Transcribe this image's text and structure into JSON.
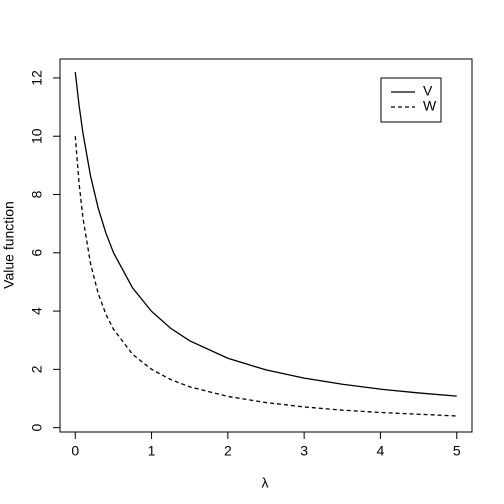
{
  "chart_data": {
    "type": "line",
    "x_label": "λ",
    "y_label": "Value function",
    "x": [
      0,
      0.05,
      0.1,
      0.2,
      0.3,
      0.4,
      0.5,
      0.75,
      1,
      1.25,
      1.5,
      2,
      2.5,
      3,
      3.5,
      4,
      4.5,
      5
    ],
    "series": [
      {
        "name": "V",
        "color": "#000000",
        "dash": "none",
        "values": [
          12.2,
          11.06,
          10.12,
          8.64,
          7.54,
          6.69,
          6.01,
          4.8,
          3.99,
          3.41,
          2.98,
          2.38,
          1.98,
          1.7,
          1.49,
          1.32,
          1.19,
          1.08
        ]
      },
      {
        "name": "W",
        "color": "#000000",
        "dash": "4,3",
        "values": [
          10.0,
          8.38,
          7.21,
          5.63,
          4.61,
          3.9,
          3.38,
          2.52,
          2.0,
          1.65,
          1.4,
          1.07,
          0.86,
          0.71,
          0.6,
          0.52,
          0.46,
          0.4
        ]
      }
    ],
    "xlim": [
      -0.2,
      5.2
    ],
    "xticks": [
      0,
      1,
      2,
      3,
      4,
      5
    ],
    "ylim": [
      -0.15,
      12.65
    ],
    "yticks": [
      0,
      2,
      4,
      6,
      8,
      10,
      12
    ],
    "legend": "top-right"
  }
}
